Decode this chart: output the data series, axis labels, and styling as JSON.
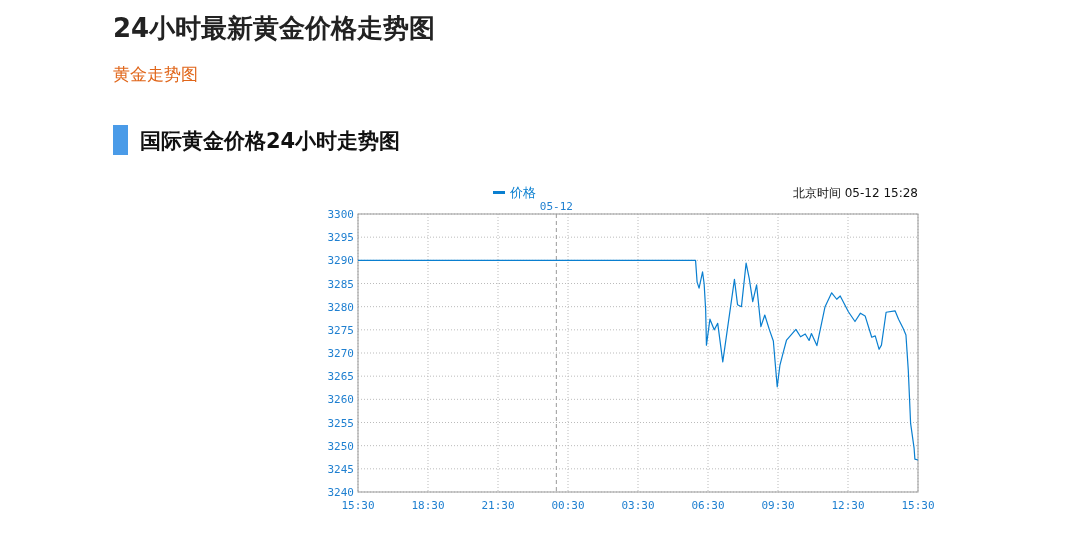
{
  "chart_data": {
    "type": "line",
    "title": "24小时最新黄金价格走势图",
    "subtitle": "黄金走势图",
    "annotations": [
      "国际黄金价格24小时走势图",
      "北京时间 05-12 15:28"
    ],
    "series": [
      {
        "name": "价格",
        "color": "#0a7fd0",
        "x": [
          "--05-11T15:30",
          "--05-12T05:58",
          "--05-12T06:02",
          "--05-12T06:07",
          "--05-12T06:16",
          "--05-12T06:20",
          "--05-12T06:24",
          "--05-12T06:26",
          "--05-12T06:35",
          "--05-12T06:46",
          "--05-12T06:55",
          "--05-12T07:08",
          "--05-12T07:38",
          "--05-12T07:46",
          "--05-12T07:56",
          "--05-12T08:08",
          "--05-12T08:16",
          "--05-12T08:25",
          "--05-12T08:35",
          "--05-12T08:46",
          "--05-12T08:56",
          "--05-12T09:08",
          "--05-12T09:18",
          "--05-12T09:28",
          "--05-12T09:35",
          "--05-12T09:44",
          "--05-12T09:52",
          "--05-12T10:16",
          "--05-12T10:28",
          "--05-12T10:40",
          "--05-12T10:50",
          "--05-12T10:56",
          "--05-12T11:10",
          "--05-12T11:31",
          "--05-12T11:48",
          "--05-12T12:01",
          "--05-12T12:10",
          "--05-12T12:31",
          "--05-12T12:48",
          "--05-12T13:02",
          "--05-12T13:14",
          "--05-12T13:31",
          "--05-12T13:40",
          "--05-12T13:50",
          "--05-12T13:56",
          "--05-12T14:08",
          "--05-12T14:31",
          "--05-12T14:40",
          "--05-12T14:52",
          "--05-12T14:59",
          "--05-12T15:05",
          "--05-12T15:11",
          "--05-12T15:20",
          "--05-12T15:22",
          "--05-12T15:30"
        ],
        "values": [
          3290,
          3290,
          3285.3,
          3284,
          3287.5,
          3285,
          3279.3,
          3271.7,
          3277.3,
          3275,
          3276.4,
          3268.1,
          3285.9,
          3280.4,
          3280,
          3289.4,
          3286.1,
          3281.1,
          3284.7,
          3275.7,
          3278.2,
          3275,
          3272.6,
          3262.7,
          3267.4,
          3270.3,
          3272.8,
          3275.1,
          3273.5,
          3274.1,
          3272.7,
          3274.2,
          3271.6,
          3280,
          3283,
          3281.6,
          3282.3,
          3278.9,
          3276.8,
          3278.6,
          3278,
          3273.4,
          3273.7,
          3270.8,
          3271.7,
          3278.8,
          3279.1,
          3277.3,
          3275.3,
          3273.9,
          3266.3,
          3254.8,
          3249.4,
          3247.1,
          3246.9
        ]
      }
    ],
    "xlim": [
      "--05-11T15:30",
      "--05-12T15:30"
    ],
    "xticks": [
      {
        "value": "--05-11T15:30",
        "label": "15:30"
      },
      {
        "value": "--05-11T18:30",
        "label": "18:30"
      },
      {
        "value": "--05-11T21:30",
        "label": "21:30"
      },
      {
        "value": "--05-12T00:30",
        "label": "00:30"
      },
      {
        "value": "--05-12T03:30",
        "label": "03:30"
      },
      {
        "value": "--05-12T06:30",
        "label": "06:30"
      },
      {
        "value": "--05-12T09:30",
        "label": "09:30"
      },
      {
        "value": "--05-12T12:30",
        "label": "12:30"
      },
      {
        "value": "--05-12T15:30",
        "label": "15:30"
      }
    ],
    "ylim": [
      3240,
      3300
    ],
    "yticks": [
      3240,
      3245,
      3250,
      3255,
      3260,
      3265,
      3270,
      3275,
      3280,
      3285,
      3290,
      3295,
      3300
    ],
    "ref_lines": [
      {
        "axis": "x",
        "value": "--05-12",
        "label": "05-12",
        "color": "#999999",
        "line_style": "dashed"
      }
    ],
    "grid": true,
    "legend": "top"
  }
}
